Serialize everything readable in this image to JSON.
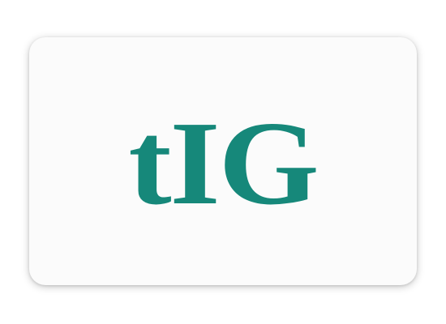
{
  "app_icon": {
    "logo_text": "tIG",
    "colors": {
      "logo": "#16887a",
      "card_background": "#fbfbfb",
      "page_background": "#ffffff"
    }
  }
}
